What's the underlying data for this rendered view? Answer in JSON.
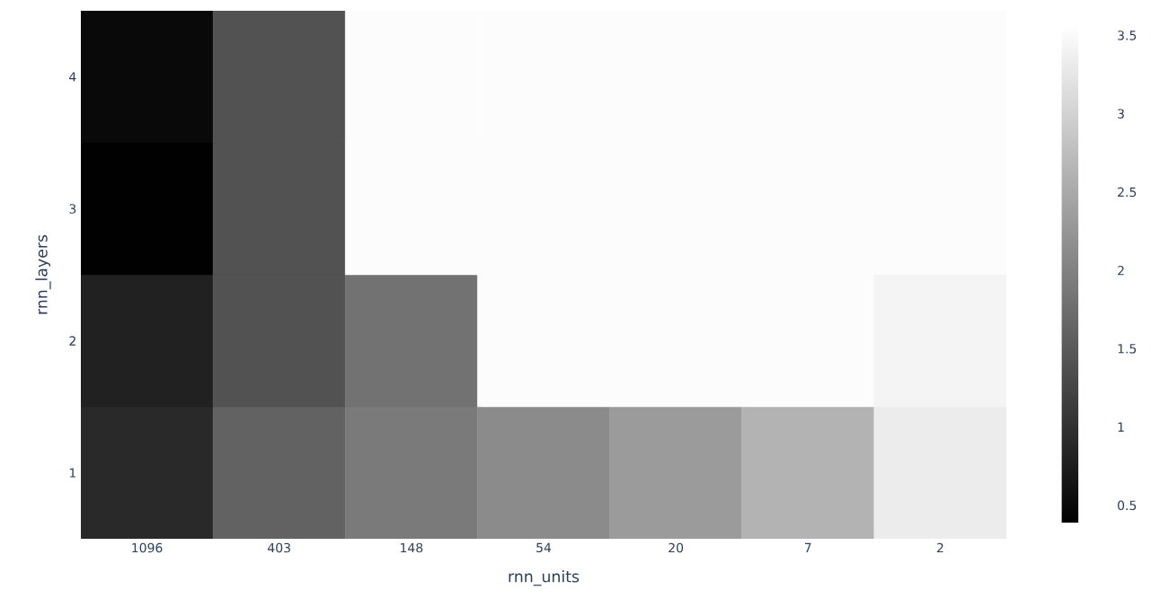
{
  "chart_data": {
    "type": "heatmap",
    "xlabel": "rnn_units",
    "ylabel": "rnn_layers",
    "categories": [
      "1096",
      "403",
      "148",
      "54",
      "20",
      "7",
      "2"
    ],
    "y_categories": [
      "4",
      "3",
      "2",
      "1"
    ],
    "cells": [
      [
        0.5,
        1.4,
        3.5,
        3.5,
        3.5,
        3.5,
        3.5
      ],
      [
        0.4,
        1.4,
        3.5,
        3.5,
        3.5,
        3.5,
        3.5
      ],
      [
        0.8,
        1.4,
        1.8,
        3.5,
        3.5,
        3.5,
        3.4
      ],
      [
        0.9,
        1.6,
        1.9,
        2.1,
        2.3,
        2.6,
        3.3
      ]
    ],
    "clim": [
      0.39,
      3.56
    ],
    "cticks": [
      0.5,
      1,
      1.5,
      2,
      2.5,
      3,
      3.5
    ]
  }
}
